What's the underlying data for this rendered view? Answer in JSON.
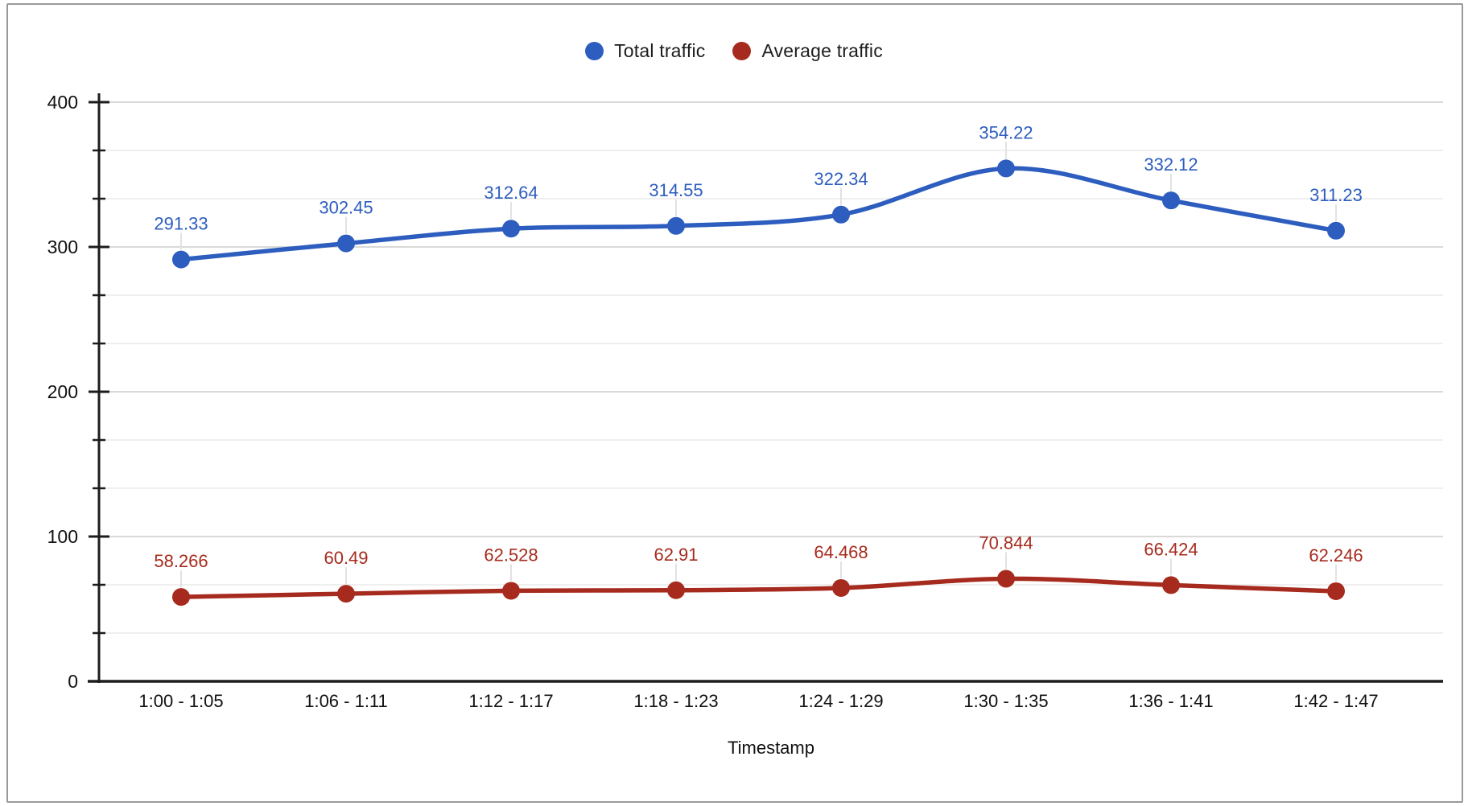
{
  "chart_title": "",
  "legend": {
    "items": [
      {
        "label": "Total traffic",
        "color": "#2D5DBE"
      },
      {
        "label": "Average traffic",
        "color": "#A62B1E"
      }
    ],
    "position": "top-center"
  },
  "chart_data": {
    "type": "line",
    "smooth": true,
    "categories": [
      "1:00 - 1:05",
      "1:06 - 1:11",
      "1:12 - 1:17",
      "1:18 - 1:23",
      "1:24 - 1:29",
      "1:30 - 1:35",
      "1:36 - 1:41",
      "1:42 - 1:47"
    ],
    "series": [
      {
        "name": "Total traffic",
        "color": "#2D5DBE",
        "values": [
          291.33,
          302.45,
          312.64,
          314.55,
          322.34,
          354.22,
          332.12,
          311.23
        ]
      },
      {
        "name": "Average traffic",
        "color": "#A62B1E",
        "values": [
          58.266,
          60.49,
          62.528,
          62.91,
          64.468,
          70.844,
          66.424,
          62.246
        ]
      }
    ],
    "xlabel": "Timestamp",
    "ylabel": "",
    "ylim": [
      0,
      400
    ],
    "yticks": [
      0,
      100,
      200,
      300,
      400
    ],
    "minor_divisions_per_major": 3,
    "grid": true,
    "legend_position": "top",
    "data_labels_shown": true
  },
  "style_colors": {
    "axis": "#1c1c1c",
    "tick_text": "#111111",
    "grid_major": "#d9d9d9",
    "grid_minor": "#efefef",
    "leader_line": "#e2e2e2",
    "card_border": "#999999",
    "background": "#ffffff"
  }
}
